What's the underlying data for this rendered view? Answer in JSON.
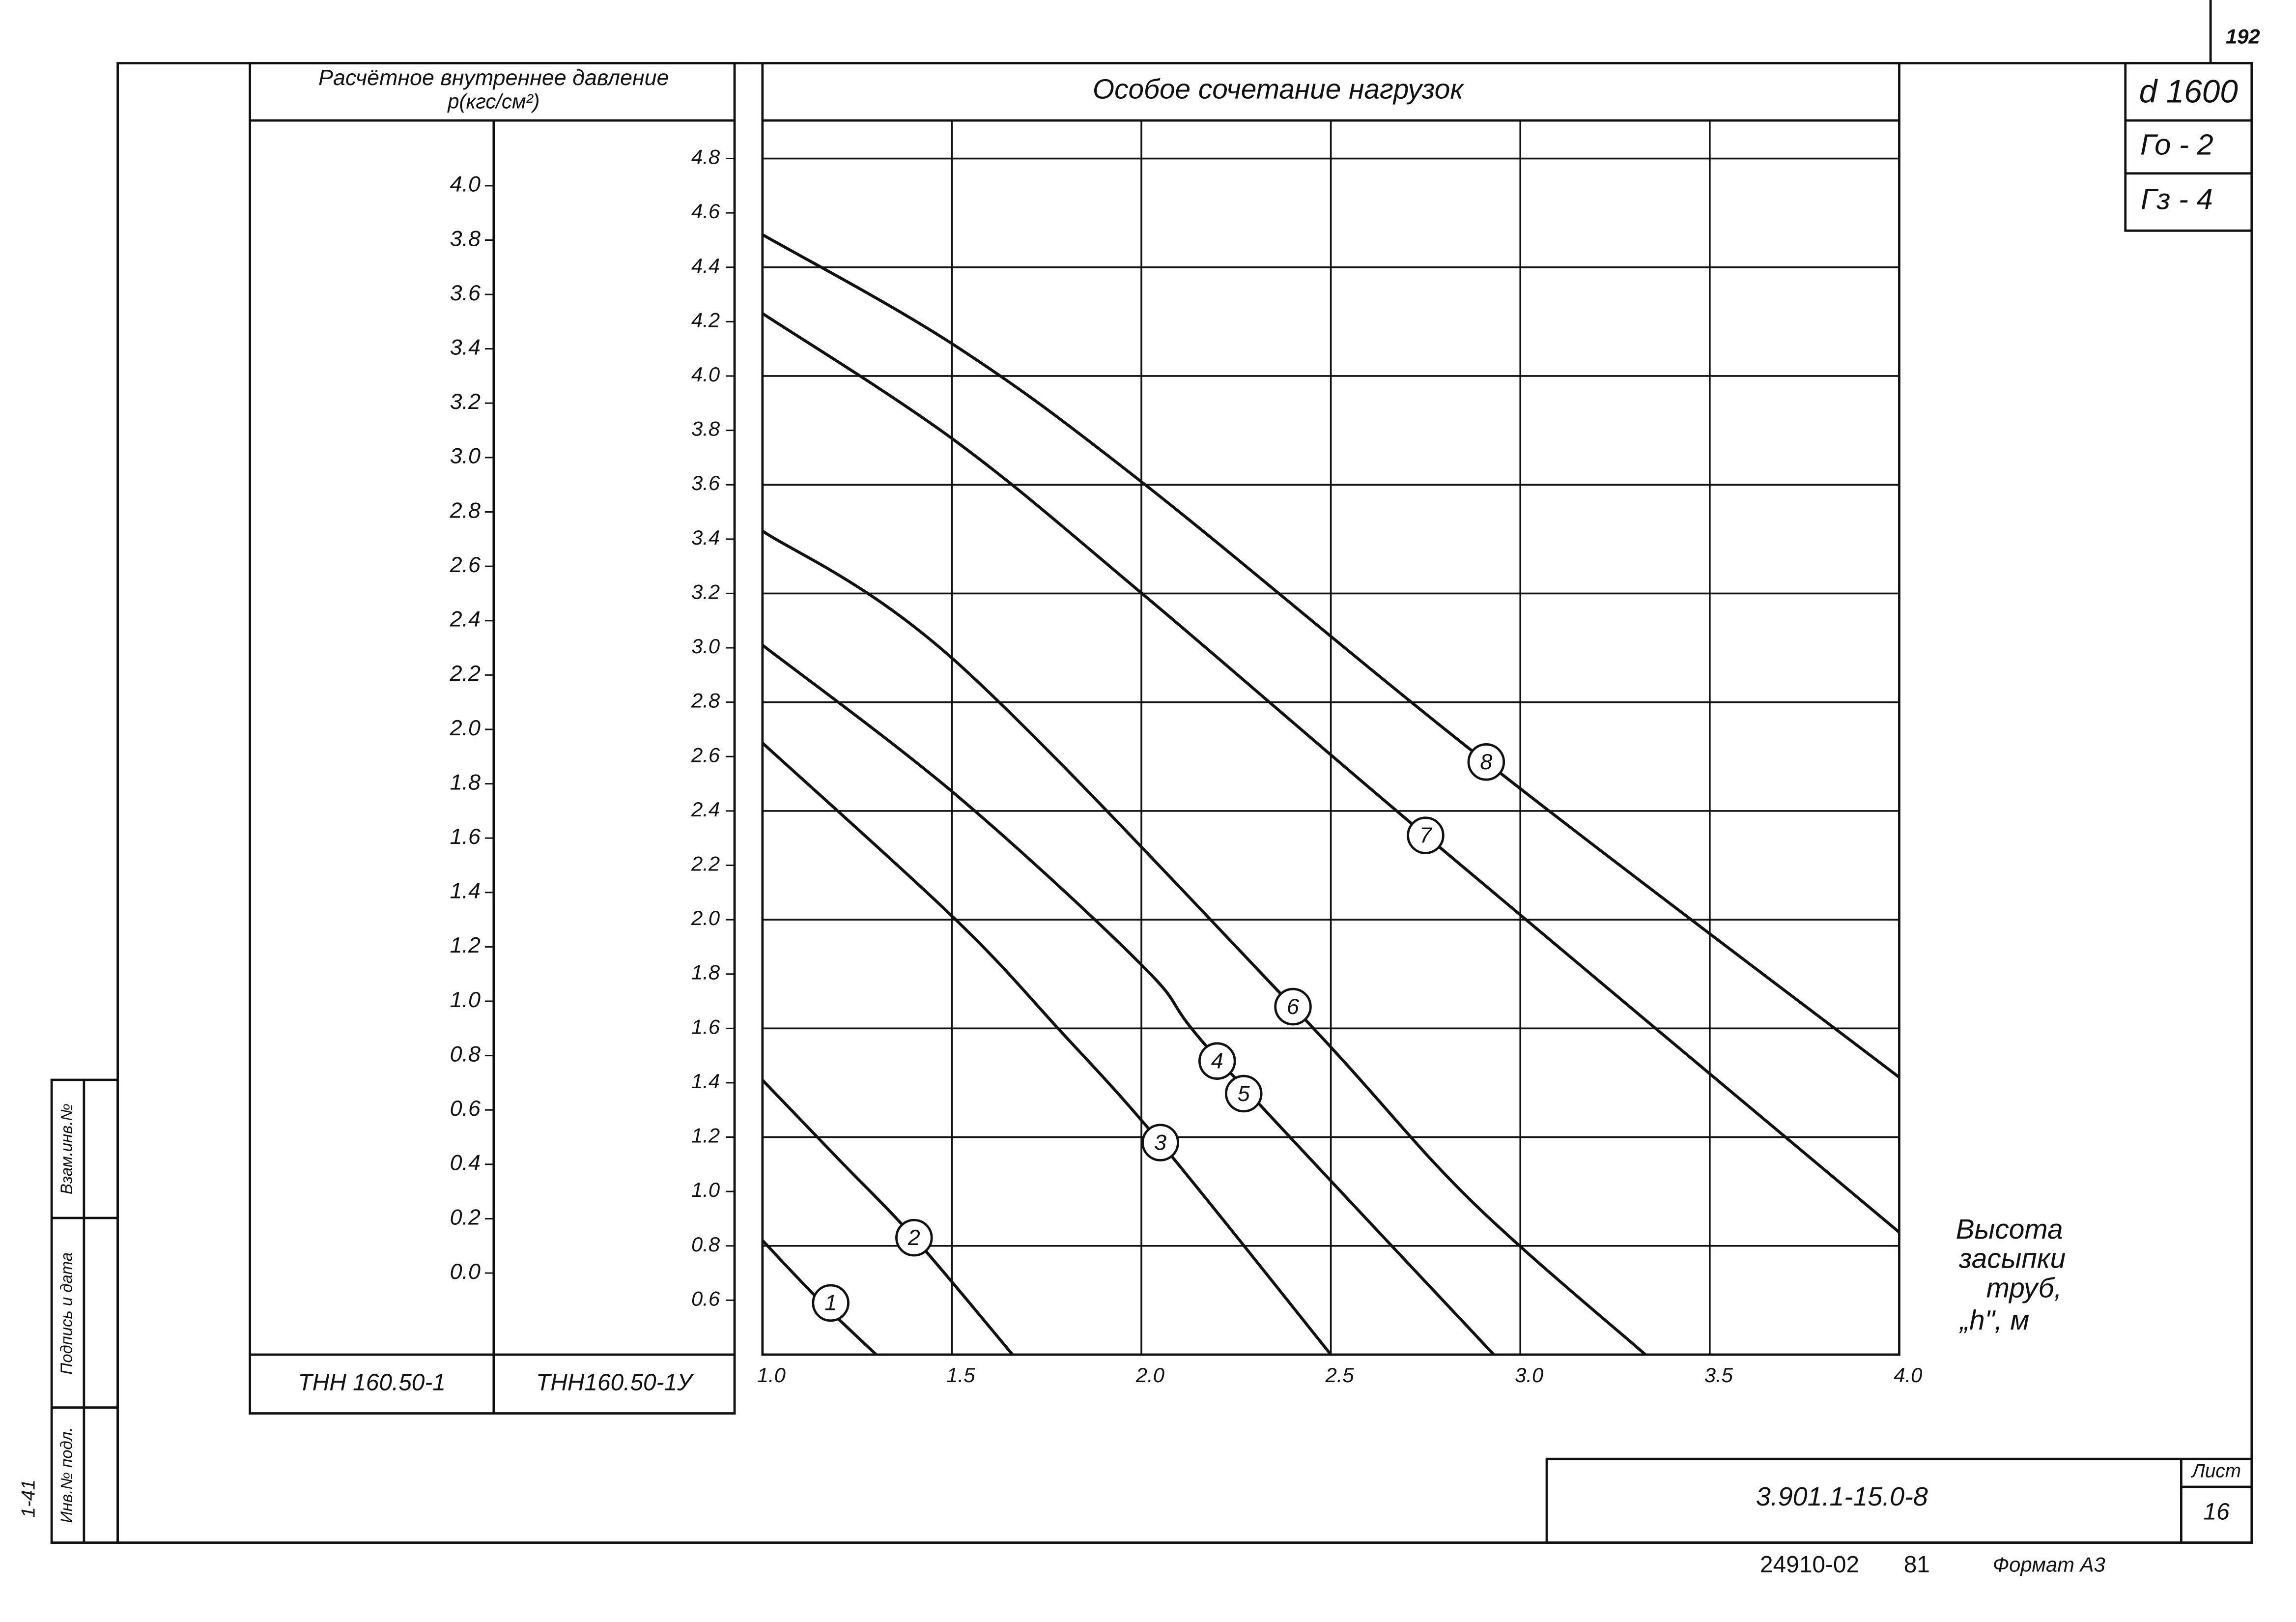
{
  "chart_data": {
    "type": "line",
    "title": "Особое сочетание нагрузок",
    "y_label": "Расчётное внутреннее давление",
    "y_unit": "p(кгс/см²)",
    "column_labels": [
      "ТНН 160.50-1",
      "ТНН160.50-1У"
    ],
    "x_label": [
      "Высота",
      "засыпки",
      "труб,",
      "„h\", м"
    ],
    "xlim": [
      1.0,
      4.0
    ],
    "xticks": [
      {
        "value": 1.0,
        "label": "1.0"
      },
      1.5,
      {
        "value": 2.0,
        "label": "2.0"
      },
      2.5,
      {
        "value": 3.0,
        "label": "3.0"
      },
      3.5,
      {
        "value": 4.0,
        "label": "4.0"
      }
    ],
    "ylim": [
      0.4,
      4.94
    ],
    "yticks": [
      0.6,
      0.8,
      {
        "value": 1.0,
        "label": "1.0"
      },
      1.2,
      1.4,
      1.6,
      1.8,
      {
        "value": 2.0,
        "label": "2.0"
      },
      2.2,
      2.4,
      2.6,
      2.8,
      {
        "value": 3.0,
        "label": "3.0"
      },
      3.2,
      3.4,
      3.6,
      3.8,
      {
        "value": 4.0,
        "label": "4.0"
      },
      4.2,
      4.4,
      4.6,
      4.8
    ],
    "y2lim": [
      -0.3,
      4.24
    ],
    "y2ticks": [
      {
        "value": 0.0,
        "label": "0.0"
      },
      0.2,
      0.4,
      0.6,
      0.8,
      {
        "value": 1.0,
        "label": "1.0"
      },
      1.2,
      1.4,
      1.6,
      1.8,
      {
        "value": 2.0,
        "label": "2.0"
      },
      2.2,
      2.4,
      2.6,
      2.8,
      {
        "value": 3.0,
        "label": "3.0"
      },
      3.2,
      3.4,
      3.6,
      3.8,
      {
        "value": 4.0,
        "label": "4.0"
      }
    ],
    "grid": true,
    "color": "#111111",
    "series": [
      {
        "labels": [
          "1"
        ],
        "x": [
          1.0,
          1.15,
          1.3
        ],
        "values": [
          0.82,
          0.6,
          0.4
        ]
      },
      {
        "labels": [
          "2"
        ],
        "x": [
          1.0,
          1.2,
          1.4,
          1.66
        ],
        "values": [
          1.41,
          1.12,
          0.83,
          0.4
        ]
      },
      {
        "labels": [
          "3"
        ],
        "x": [
          1.0,
          1.51,
          1.78,
          2.05,
          2.5
        ],
        "values": [
          2.65,
          2.0,
          1.6,
          1.18,
          0.4
        ]
      },
      {
        "labels": [
          "4",
          "5"
        ],
        "x": [
          1.0,
          1.51,
          2.01,
          2.2,
          2.93
        ],
        "values": [
          3.01,
          2.46,
          1.82,
          1.49,
          0.4
        ]
      },
      {
        "labels": [
          "6"
        ],
        "x": [
          1.0,
          1.51,
          2.4,
          2.86,
          3.33
        ],
        "values": [
          3.43,
          2.95,
          1.68,
          0.98,
          0.4
        ]
      },
      {
        "labels": [
          "7"
        ],
        "x": [
          1.0,
          1.51,
          2.01,
          2.75,
          4.0
        ],
        "values": [
          4.23,
          3.76,
          3.19,
          2.31,
          0.85
        ]
      },
      {
        "labels": [
          "8"
        ],
        "x": [
          1.0,
          1.51,
          2.01,
          2.91,
          4.0
        ],
        "values": [
          4.52,
          4.11,
          3.6,
          2.58,
          1.42
        ]
      }
    ]
  },
  "stamp": {
    "diameter": "d 1600",
    "g0": "Го - 2",
    "g3": "Гз - 4",
    "page": "192"
  },
  "title_block": {
    "code": "3.901.1-15.0-8",
    "sheet_label": "Лист",
    "sheet": "16",
    "order": "24910-02",
    "year": "81",
    "format": "Формат А3"
  },
  "side_strip": [
    "Инв.№ подл.",
    "Подпись и дата",
    "Взам.инв.№"
  ],
  "side_mark": "1-41"
}
